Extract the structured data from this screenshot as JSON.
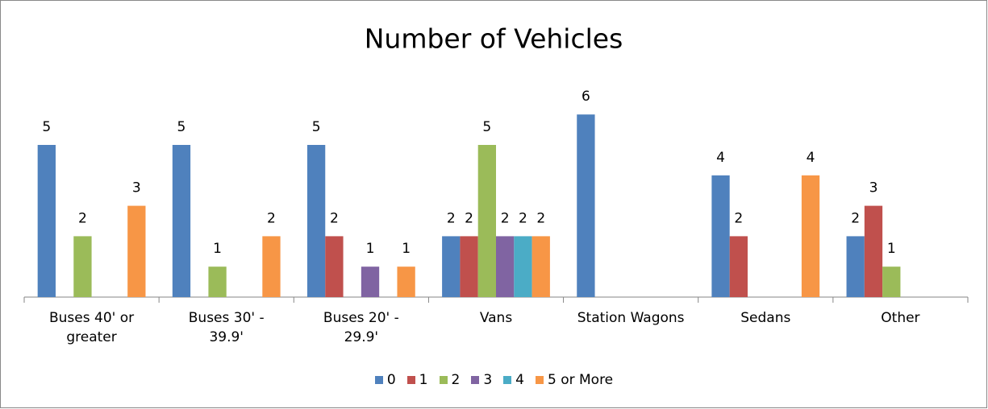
{
  "chart_data": {
    "type": "bar",
    "title": "Number of Vehicles",
    "categories": [
      "Buses 40' or greater",
      "Buses 30' - 39.9'",
      "Buses 20' - 29.9'",
      "Vans",
      "Station Wagons",
      "Sedans",
      "Other"
    ],
    "series": [
      {
        "name": "0",
        "color": "#4f81bd",
        "values": [
          5,
          5,
          5,
          2,
          6,
          4,
          2
        ]
      },
      {
        "name": "1",
        "color": "#c0504d",
        "values": [
          null,
          null,
          2,
          2,
          null,
          2,
          3
        ]
      },
      {
        "name": "2",
        "color": "#9bbb59",
        "values": [
          2,
          1,
          null,
          5,
          null,
          null,
          1
        ]
      },
      {
        "name": "3",
        "color": "#8064a2",
        "values": [
          null,
          null,
          1,
          2,
          null,
          null,
          null
        ]
      },
      {
        "name": "4",
        "color": "#4bacc6",
        "values": [
          null,
          null,
          null,
          2,
          null,
          null,
          null
        ]
      },
      {
        "name": "5 or More",
        "color": "#f79646",
        "values": [
          3,
          2,
          1,
          2,
          null,
          4,
          null
        ]
      }
    ],
    "ylim": [
      0,
      7
    ],
    "legend": "bottom"
  }
}
